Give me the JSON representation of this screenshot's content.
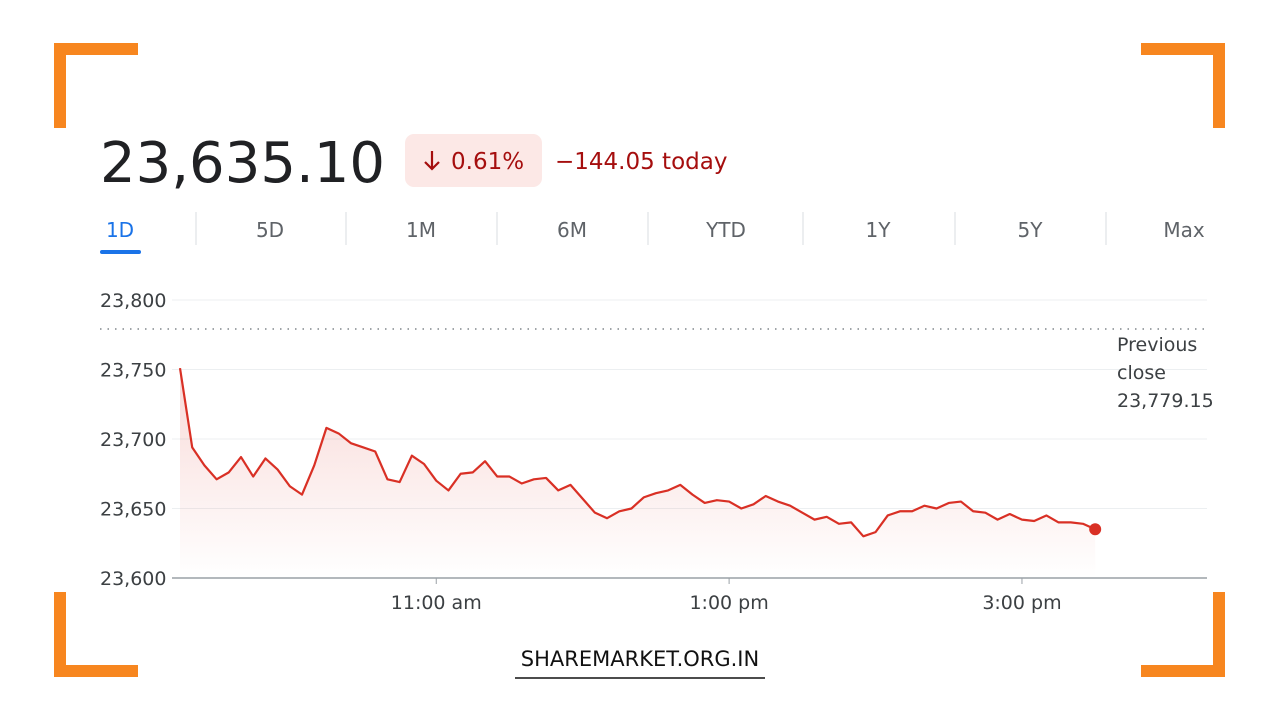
{
  "header": {
    "price": "23,635.10",
    "change_percent": "0.61%",
    "change_today": "−144.05 today"
  },
  "tabs": [
    "1D",
    "5D",
    "1M",
    "6M",
    "YTD",
    "1Y",
    "5Y",
    "Max"
  ],
  "footer": "SHAREMARKET.ORG.IN",
  "chart_data": {
    "type": "line",
    "color": "#d93025",
    "x": [
      555,
      560,
      565,
      570,
      575,
      580,
      585,
      590,
      595,
      600,
      605,
      610,
      615,
      620,
      625,
      630,
      635,
      640,
      645,
      650,
      655,
      660,
      665,
      670,
      675,
      680,
      685,
      690,
      695,
      700,
      705,
      710,
      715,
      720,
      725,
      730,
      735,
      740,
      745,
      750,
      755,
      760,
      765,
      770,
      775,
      780,
      785,
      790,
      795,
      800,
      805,
      810,
      815,
      820,
      825,
      830,
      835,
      840,
      845,
      850,
      855,
      860,
      865,
      870,
      875,
      880,
      885,
      890,
      895,
      900,
      905,
      910,
      915,
      920,
      925,
      930
    ],
    "values": [
      23751,
      23694,
      23681,
      23671,
      23676,
      23687,
      23673,
      23686,
      23678,
      23666,
      23660,
      23681,
      23708,
      23704,
      23697,
      23694,
      23691,
      23671,
      23669,
      23688,
      23682,
      23670,
      23663,
      23675,
      23676,
      23684,
      23673,
      23673,
      23668,
      23671,
      23672,
      23663,
      23667,
      23657,
      23647,
      23643,
      23648,
      23650,
      23658,
      23661,
      23663,
      23667,
      23660,
      23654,
      23656,
      23655,
      23650,
      23653,
      23659,
      23655,
      23652,
      23647,
      23642,
      23644,
      23639,
      23640,
      23630,
      23633,
      23645,
      23648,
      23648,
      23652,
      23650,
      23654,
      23655,
      23648,
      23647,
      23642,
      23646,
      23642,
      23641,
      23645,
      23640,
      23640,
      23639,
      23635.1
    ],
    "xlim": [
      555,
      975
    ],
    "xticks": [
      {
        "value": 660,
        "label": "11:00 am"
      },
      {
        "value": 780,
        "label": "1:00 pm"
      },
      {
        "value": 900,
        "label": "3:00 pm"
      }
    ],
    "ylim": [
      23600,
      23800
    ],
    "yticks": [
      {
        "value": 23600,
        "label": "23,600"
      },
      {
        "value": 23650,
        "label": "23,650"
      },
      {
        "value": 23700,
        "label": "23,700"
      },
      {
        "value": 23750,
        "label": "23,750"
      },
      {
        "value": 23800,
        "label": "23,800"
      }
    ],
    "grid": true,
    "previous_close_label": "Previous close",
    "previous_close": {
      "value": 23779.15,
      "label": "23,779.15"
    }
  }
}
